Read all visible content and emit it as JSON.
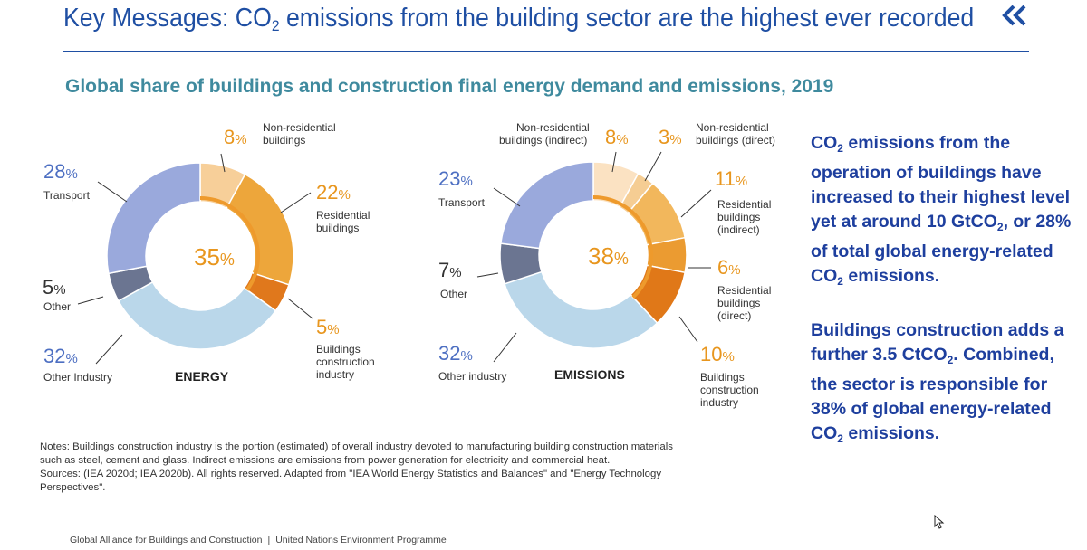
{
  "header": {
    "title_part1": "Key Messages: CO",
    "title_sub": "2",
    "title_part2": " emissions from the building sector are the highest ever recorded",
    "back_icon": "double-chevron-left-icon",
    "accent_color": "#1f4fa3"
  },
  "chart_data": [
    {
      "type": "pie",
      "name": "ENERGY",
      "title": "Global share of buildings and construction final energy demand and emissions, 2019",
      "center_label": "35%",
      "slices": [
        {
          "label": "Non-residential buildings",
          "value": 8,
          "color": "#f7cf99"
        },
        {
          "label": "Residential buildings",
          "value": 22,
          "color": "#eda63b"
        },
        {
          "label": "Buildings construction industry",
          "value": 5,
          "color": "#e0781c"
        },
        {
          "label": "Other Industry",
          "value": 32,
          "color": "#bad7ea"
        },
        {
          "label": "Other",
          "value": 5,
          "color": "#6b7591"
        },
        {
          "label": "Transport",
          "value": 28,
          "color": "#9aa9dc"
        }
      ]
    },
    {
      "type": "pie",
      "name": "EMISSIONS",
      "title": "Global share of buildings and construction final energy demand and emissions, 2019",
      "center_label": "38%",
      "slices": [
        {
          "label": "Non-residential buildings (indirect)",
          "value": 8,
          "color": "#fbe2c2"
        },
        {
          "label": "Non-residential buildings (direct)",
          "value": 3,
          "color": "#f5cd93"
        },
        {
          "label": "Residential buildings (indirect)",
          "value": 11,
          "color": "#f2b75c"
        },
        {
          "label": "Residential buildings (direct)",
          "value": 6,
          "color": "#eb9b31"
        },
        {
          "label": "Buildings construction industry",
          "value": 10,
          "color": "#e07818"
        },
        {
          "label": "Other industry",
          "value": 32,
          "color": "#bad7ea"
        },
        {
          "label": "Other",
          "value": 7,
          "color": "#6b7591"
        },
        {
          "label": "Transport",
          "value": 23,
          "color": "#9aa9dc"
        }
      ]
    }
  ],
  "chart_title": "Global share of buildings and construction final energy demand and emissions, 2019",
  "energy_labels": {
    "nonres_pct": "8",
    "nonres_text": [
      "Non-residential",
      "buildings"
    ],
    "res_pct": "22",
    "res_text": [
      "Residential",
      "buildings"
    ],
    "bci_pct": "5",
    "bci_text": [
      "Buildings",
      "construction",
      "industry"
    ],
    "oi_pct": "32",
    "oi_text": "Other Industry",
    "other_pct": "5",
    "other_text": "Other",
    "transport_pct": "28",
    "transport_text": "Transport",
    "center_pct": "35",
    "name": "ENERGY"
  },
  "emissions_labels": {
    "nonres_ind_pct": "8",
    "nonres_ind_text": [
      "Non-residential",
      "buildings (indirect)"
    ],
    "nonres_dir_pct": "3",
    "nonres_dir_text": [
      "Non-residential",
      "buildings (direct)"
    ],
    "res_ind_pct": "11",
    "res_ind_text": [
      "Residential",
      "buildings",
      "(indirect)"
    ],
    "res_dir_pct": "6",
    "res_dir_text": [
      "Residential",
      "buildings",
      "(direct)"
    ],
    "bci_pct": "10",
    "bci_text": [
      "Buildings",
      "construction",
      "industry"
    ],
    "oi_pct": "32",
    "oi_text": "Other industry",
    "other_pct": "7",
    "other_text": "Other",
    "transport_pct": "23",
    "transport_text": "Transport",
    "center_pct": "38",
    "name": "EMISSIONS"
  },
  "percent_sign": "%",
  "notes": {
    "line1": "Notes: Buildings construction industry is the portion (estimated) of overall industry devoted to manufacturing building construction materials",
    "line2": "such as steel, cement and glass. Indirect emissions are emissions from power generation for electricity and commercial heat.",
    "line3": "Sources: (IEA 2020d; IEA 2020b). All rights reserved. Adapted from \"IEA World Energy Statistics and Balances\" and \"Energy Technology",
    "line4": "Perspectives\"."
  },
  "side": {
    "p1_a": "CO",
    "p1_sub": "2",
    "p1_b": " emissions from the operation of buildings have increased to their highest level yet at around 10 GtCO",
    "p1_sub2": "2",
    "p1_c": ", or 28% of total global energy-related CO",
    "p1_sub3": "2",
    "p1_d": " emissions.",
    "p2_a": "Buildings construction adds a further 3.5 CtCO",
    "p2_sub": "2",
    "p2_b": ". Combined, the sector is responsible for 38% of global energy-related CO",
    "p2_sub2": "2",
    "p2_c": " emissions."
  },
  "footer": {
    "left": "Global Alliance for Buildings and Construction",
    "sep": "|",
    "right": "United Nations Environment Programme"
  },
  "colors": {
    "orange_text": "#e8961e",
    "blue_text": "#4d6fc2",
    "teal_title": "#3f8a9e"
  }
}
